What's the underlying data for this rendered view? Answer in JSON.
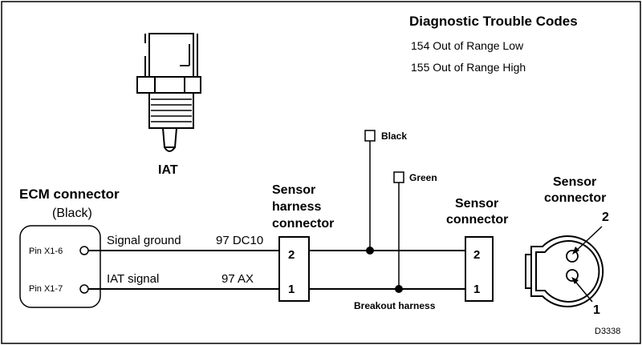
{
  "dtc": {
    "title": "Diagnostic Trouble Codes",
    "codes": [
      "154 Out of Range Low",
      "155 Out of Range High"
    ]
  },
  "iat_label": "IAT",
  "ecm": {
    "title": "ECM connector",
    "subtitle": "(Black)",
    "pins": [
      "Pin X1-6",
      "Pin X1-7"
    ]
  },
  "wires": [
    {
      "name": "Signal ground",
      "code": "97 DC10"
    },
    {
      "name": "IAT signal",
      "code": "97 AX"
    }
  ],
  "harness_connector": {
    "label_lines": [
      "Sensor",
      "harness",
      "connector"
    ],
    "pins": [
      "2",
      "1"
    ]
  },
  "breakout": {
    "probe_1": "Black",
    "probe_2": "Green",
    "label": "Breakout harness"
  },
  "sensor_connector": {
    "label_lines": [
      "Sensor",
      "connector"
    ],
    "pins": [
      "2",
      "1"
    ]
  },
  "sensor_face": {
    "label_lines": [
      "Sensor",
      "connector"
    ],
    "pins": [
      "2",
      "1"
    ]
  },
  "figure_id": "D3338"
}
